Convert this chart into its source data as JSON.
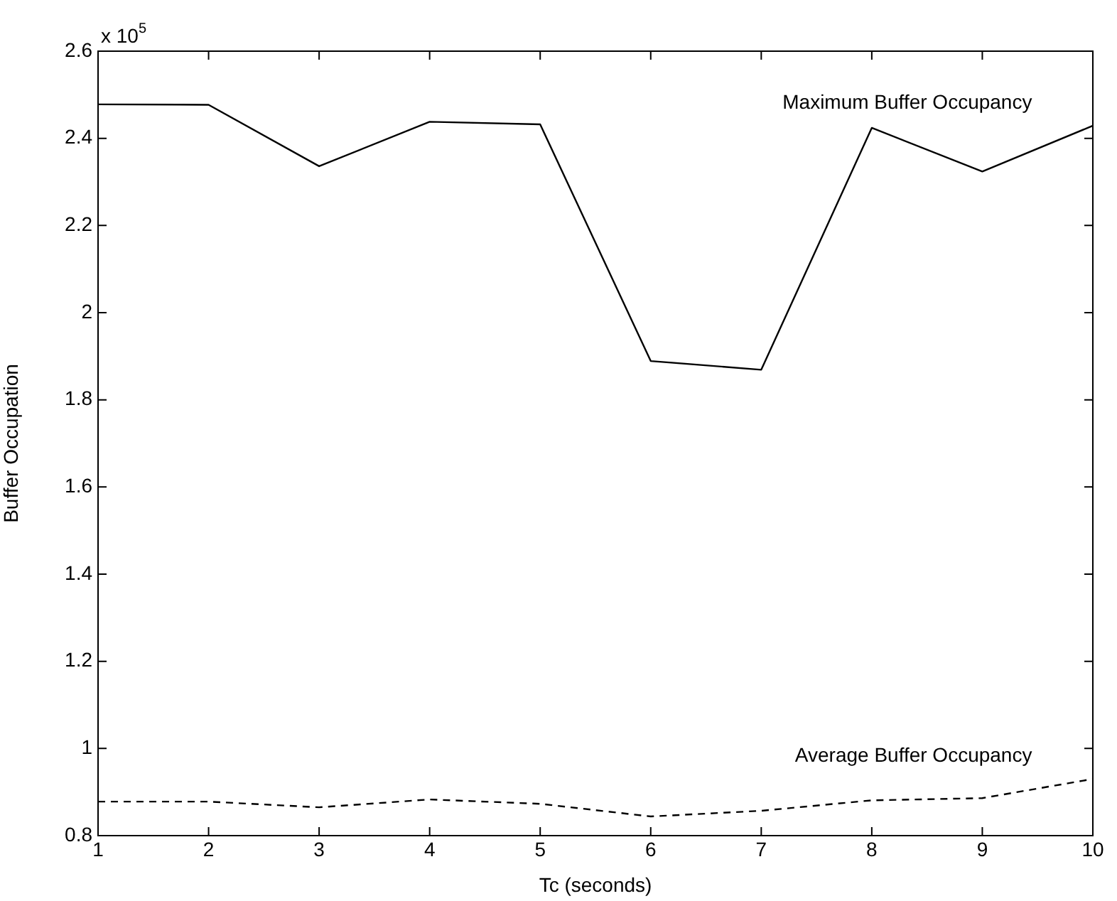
{
  "chart_data": {
    "type": "line",
    "xlabel": "Tc (seconds)",
    "ylabel": "Buffer Occupation",
    "x": [
      1,
      2,
      3,
      4,
      5,
      6,
      7,
      8,
      9,
      10
    ],
    "series": [
      {
        "name": "Maximum Buffer Occupancy",
        "color": "#000000",
        "line_style": "solid",
        "values": [
          2.478,
          2.477,
          2.336,
          2.438,
          2.432,
          1.889,
          1.869,
          2.424,
          2.324,
          2.429
        ]
      },
      {
        "name": "Average Buffer Occupancy",
        "color": "#000000",
        "line_style": "dashed",
        "values": [
          0.878,
          0.878,
          0.865,
          0.883,
          0.873,
          0.844,
          0.857,
          0.881,
          0.886,
          0.93
        ]
      }
    ],
    "xlim": [
      1,
      10
    ],
    "xticks": [
      1,
      2,
      3,
      4,
      5,
      6,
      7,
      8,
      9,
      10
    ],
    "ylim": [
      0.8,
      2.6
    ],
    "yticks": [
      0.8,
      1,
      1.2,
      1.4,
      1.6,
      1.8,
      2,
      2.2,
      2.4,
      2.6
    ],
    "annotations": [
      "x 10$^{5}$"
    ],
    "grid": false,
    "legend": false,
    "marker": "none"
  }
}
